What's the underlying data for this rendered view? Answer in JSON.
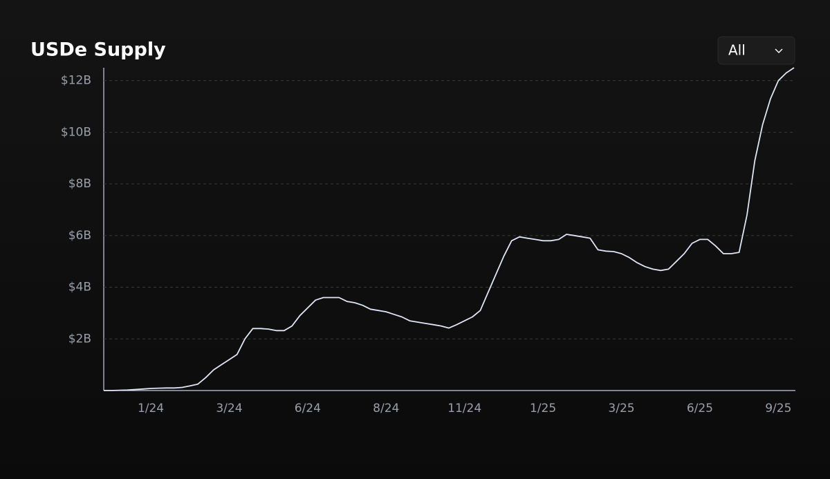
{
  "chart_data": {
    "type": "line",
    "title": "USDe Supply",
    "range_selector": "All",
    "categories": [
      null,
      null,
      null,
      null,
      null,
      null,
      "1/24",
      null,
      null,
      null,
      null,
      null,
      null,
      null,
      null,
      null,
      "3/24",
      null,
      null,
      null,
      null,
      null,
      null,
      null,
      null,
      null,
      "6/24",
      null,
      null,
      null,
      null,
      null,
      null,
      null,
      null,
      null,
      "8/24",
      null,
      null,
      null,
      null,
      null,
      null,
      null,
      null,
      null,
      "11/24",
      null,
      null,
      null,
      null,
      null,
      null,
      null,
      null,
      null,
      "1/25",
      null,
      null,
      null,
      null,
      null,
      null,
      null,
      null,
      null,
      "3/25",
      null,
      null,
      null,
      null,
      null,
      null,
      null,
      null,
      null,
      "6/25",
      null,
      null,
      null,
      null,
      null,
      null,
      null,
      null,
      null,
      "9/25",
      null,
      null
    ],
    "series": [
      {
        "name": "USDe Supply",
        "color": "#dfe6f7",
        "values": [
          0,
          0,
          0.01,
          0.02,
          0.04,
          0.06,
          0.08,
          0.09,
          0.1,
          0.1,
          0.12,
          0.18,
          0.25,
          0.5,
          0.8,
          1.0,
          1.2,
          1.4,
          2.0,
          2.4,
          2.4,
          2.38,
          2.32,
          2.32,
          2.5,
          2.9,
          3.2,
          3.5,
          3.6,
          3.6,
          3.6,
          3.45,
          3.4,
          3.3,
          3.15,
          3.1,
          3.05,
          2.95,
          2.85,
          2.7,
          2.65,
          2.6,
          2.55,
          2.5,
          2.42,
          2.55,
          2.7,
          2.85,
          3.1,
          3.8,
          4.5,
          5.2,
          5.8,
          5.95,
          5.9,
          5.85,
          5.8,
          5.8,
          5.85,
          6.05,
          6.0,
          5.95,
          5.9,
          5.45,
          5.4,
          5.38,
          5.3,
          5.15,
          4.95,
          4.8,
          4.7,
          4.65,
          4.7,
          5.0,
          5.3,
          5.7,
          5.85,
          5.85,
          5.6,
          5.3,
          5.3,
          5.35,
          6.8,
          8.9,
          10.3,
          11.3,
          12.0,
          12.3,
          12.5
        ]
      }
    ],
    "ylim": [
      0,
      12.5
    ],
    "yticks": [
      {
        "value": 2,
        "label": "$2B"
      },
      {
        "value": 4,
        "label": "$4B"
      },
      {
        "value": 6,
        "label": "$6B"
      },
      {
        "value": 8,
        "label": "$8B"
      },
      {
        "value": 10,
        "label": "$10B"
      },
      {
        "value": 12,
        "label": "$12B"
      }
    ],
    "grid": true
  }
}
